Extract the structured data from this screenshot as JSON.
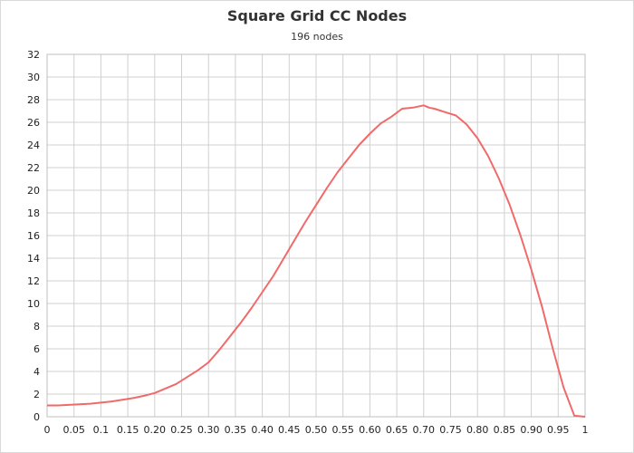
{
  "chart_data": {
    "type": "line",
    "title": "Square Grid CC Nodes",
    "subtitle": "196 nodes",
    "xlabel": "",
    "ylabel": "",
    "xlim": [
      0,
      1
    ],
    "ylim": [
      0,
      32
    ],
    "grid": true,
    "x_tick_labels": [
      "0",
      "0.05",
      "0.1",
      "0.15",
      "0.20",
      "0.25",
      "0.30",
      "0.35",
      "0.40",
      "0.45",
      "0.50",
      "0.55",
      "0.60",
      "0.65",
      "0.70",
      "0.75",
      "0.80",
      "0.85",
      "0.90",
      "0.95",
      "1"
    ],
    "y_tick_labels": [
      "0",
      "2",
      "4",
      "6",
      "8",
      "10",
      "12",
      "14",
      "16",
      "18",
      "20",
      "22",
      "24",
      "26",
      "28",
      "30",
      "32"
    ],
    "series": [
      {
        "color": "#f06a6a",
        "x": [
          0,
          0.02,
          0.04,
          0.06,
          0.08,
          0.1,
          0.12,
          0.14,
          0.16,
          0.18,
          0.2,
          0.22,
          0.24,
          0.26,
          0.28,
          0.3,
          0.32,
          0.34,
          0.36,
          0.38,
          0.4,
          0.42,
          0.44,
          0.46,
          0.48,
          0.5,
          0.52,
          0.54,
          0.56,
          0.58,
          0.6,
          0.62,
          0.64,
          0.66,
          0.68,
          0.7,
          0.71,
          0.72,
          0.74,
          0.76,
          0.78,
          0.8,
          0.82,
          0.84,
          0.86,
          0.88,
          0.9,
          0.92,
          0.94,
          0.96,
          0.98,
          1.0
        ],
        "y": [
          1.0,
          1.0,
          1.05,
          1.1,
          1.15,
          1.25,
          1.35,
          1.5,
          1.65,
          1.85,
          2.1,
          2.5,
          2.9,
          3.5,
          4.1,
          4.8,
          5.9,
          7.1,
          8.3,
          9.6,
          11.0,
          12.4,
          14.0,
          15.6,
          17.2,
          18.7,
          20.2,
          21.6,
          22.8,
          24.0,
          25.0,
          25.9,
          26.5,
          27.2,
          27.3,
          27.5,
          27.3,
          27.2,
          26.9,
          26.6,
          25.8,
          24.6,
          23.0,
          21.0,
          18.7,
          16.0,
          13.0,
          9.7,
          6.0,
          2.6,
          0.1,
          0.0
        ]
      }
    ]
  }
}
